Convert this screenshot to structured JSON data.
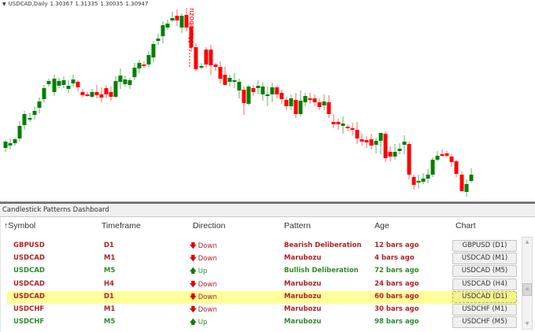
{
  "chart": {
    "symbol_period": "USDCAD,Daily",
    "open": "1.30367",
    "high": "1.31335",
    "low": "1.30035",
    "close": "1.30947",
    "annotation": "Marubozu",
    "colors": {
      "bull": "#008000",
      "bear": "#ff0000",
      "annotation": "#ff0000"
    }
  },
  "panel": {
    "title": "Candlestick Patterns Dashboard",
    "columns": {
      "symbol": "Symbol",
      "symbol_sort_icon": "↑",
      "timeframe": "Timeframe",
      "direction": "Direction",
      "pattern": "Pattern",
      "age": "Age",
      "chart": "Chart"
    },
    "rows": [
      {
        "symbol": "GBPUSD",
        "timeframe": "D1",
        "direction": "Down",
        "dir_icon": "🡇",
        "pattern": "Bearish Deliberation",
        "age": "12 bars ago",
        "chart": "GBPUSD (D1)",
        "color": "red",
        "selected": false
      },
      {
        "symbol": "USDCAD",
        "timeframe": "M1",
        "direction": "Down",
        "dir_icon": "🡇",
        "pattern": "Marubozu",
        "age": "4 bars ago",
        "chart": "USDCAD (M1)",
        "color": "red",
        "selected": false
      },
      {
        "symbol": "USDCAD",
        "timeframe": "M5",
        "direction": "Up",
        "dir_icon": "🡅",
        "pattern": "Bullish Deliberation",
        "age": "72 bars ago",
        "chart": "USDCAD (M5)",
        "color": "green",
        "selected": false
      },
      {
        "symbol": "USDCAD",
        "timeframe": "H4",
        "direction": "Down",
        "dir_icon": "🡇",
        "pattern": "Marubozu",
        "age": "24 bars ago",
        "chart": "USDCAD (H4)",
        "color": "red",
        "selected": false
      },
      {
        "symbol": "USDCAD",
        "timeframe": "D1",
        "direction": "Down",
        "dir_icon": "🡇",
        "pattern": "Marubozu",
        "age": "60 bars ago",
        "chart": "USDCAD (D1)",
        "color": "red",
        "selected": true
      },
      {
        "symbol": "USDCHF",
        "timeframe": "M1",
        "direction": "Down",
        "dir_icon": "🡇",
        "pattern": "Marubozu",
        "age": "30 bars ago",
        "chart": "USDCHF (M1)",
        "color": "red",
        "selected": false
      },
      {
        "symbol": "USDCHF",
        "timeframe": "M5",
        "direction": "Up",
        "dir_icon": "🡅",
        "pattern": "Marubozu",
        "age": "98 bars ago",
        "chart": "USDCHF (M5)",
        "color": "green",
        "selected": false
      }
    ],
    "selected_highlight_color": "#ffff99",
    "scrollbar": {
      "up_icon": "▲",
      "down_icon": "▼",
      "thumb_icon": "≡"
    }
  }
}
